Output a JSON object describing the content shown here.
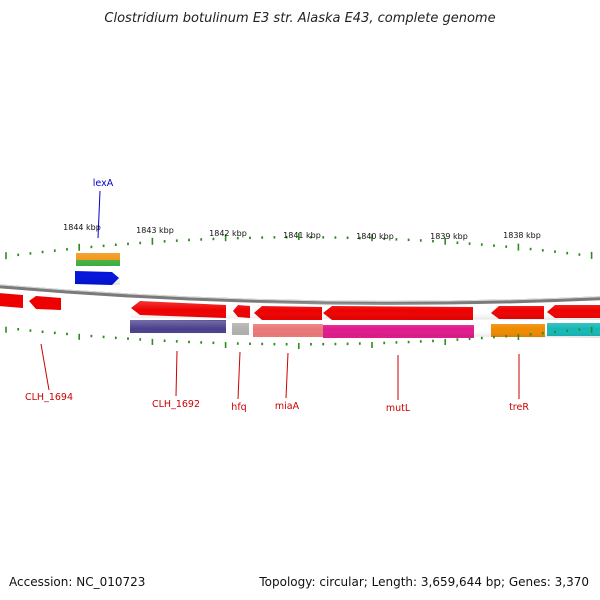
{
  "title": "Clostridium botulinum E3 str. Alaska E43, complete genome",
  "footer": {
    "accession": "Accession: NC_010723",
    "topology": "Topology: circular; Length: 3,659,644 bp; Genes: 3,370"
  },
  "colors": {
    "tick": "#2e8b22",
    "backbone": "#7a7a7a",
    "gene_label": "#cc0000",
    "lexA_label": "#0000cc",
    "red": "#ee0000",
    "purple": "#4a3f8c",
    "gray": "#b0b0b0",
    "salmon": "#ea7878",
    "magenta": "#e0198c",
    "orange": "#f08a00",
    "cyan": "#14b8b8",
    "blue": "#0011dd",
    "green": "#33aa33"
  },
  "ruler": {
    "labels": [
      "1844 kbp",
      "1843 kbp",
      "1842 kbp",
      "1841 kbp",
      "1840 kbp",
      "1839 kbp",
      "1838 kbp"
    ]
  },
  "gene_labels": [
    "CLH_1694",
    "CLH_1692",
    "hfq",
    "miaA",
    "mutL",
    "treR",
    "lexA"
  ]
}
